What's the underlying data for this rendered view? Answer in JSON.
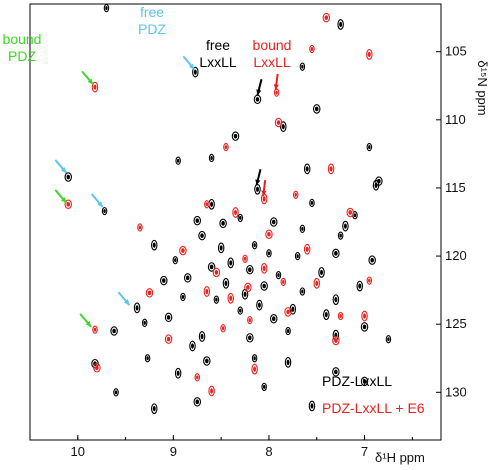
{
  "chart_data": {
    "type": "scatter",
    "title": "",
    "xlabel": "δ¹H ppm",
    "ylabel": "δ¹⁵N ppm",
    "xlim": [
      10.5,
      6.2
    ],
    "ylim": [
      101.5,
      133.5
    ],
    "x_reversed": true,
    "y_reversed": true,
    "x_ticks": [
      10,
      9,
      8,
      7
    ],
    "y_ticks": [
      105,
      110,
      115,
      120,
      125,
      130
    ],
    "legend_position": "bottom-right",
    "colors": {
      "free": "#000000",
      "bound": "#e8231f",
      "free_arrow": "#5bc6ee",
      "bound_arrow": "#3fd62a"
    },
    "series": [
      {
        "name": "PDZ-LxxLL",
        "color": "#000000",
        "points": [
          [
            9.7,
            101.8
          ],
          [
            8.77,
            106.5
          ],
          [
            8.12,
            108.5
          ],
          [
            7.65,
            106.1
          ],
          [
            7.25,
            103.0
          ],
          [
            10.1,
            114.2
          ],
          [
            9.72,
            116.7
          ],
          [
            8.12,
            115.1
          ],
          [
            7.95,
            117.5
          ],
          [
            8.3,
            117.2
          ],
          [
            8.6,
            116.2
          ],
          [
            8.48,
            117.6
          ],
          [
            7.55,
            116.1
          ],
          [
            7.2,
            117.8
          ],
          [
            6.85,
            114.5
          ],
          [
            6.95,
            112.0
          ],
          [
            6.88,
            114.8
          ],
          [
            8.7,
            118.5
          ],
          [
            8.15,
            119.2
          ],
          [
            8.4,
            120.5
          ],
          [
            8.2,
            121.0
          ],
          [
            8.0,
            119.8
          ],
          [
            8.25,
            122.8
          ],
          [
            8.05,
            122.2
          ],
          [
            7.9,
            121.4
          ],
          [
            8.45,
            122.0
          ],
          [
            8.6,
            120.8
          ],
          [
            7.7,
            120.0
          ],
          [
            7.45,
            121.2
          ],
          [
            7.3,
            119.8
          ],
          [
            8.3,
            124.0
          ],
          [
            8.1,
            123.6
          ],
          [
            7.95,
            124.6
          ],
          [
            8.55,
            123.2
          ],
          [
            7.75,
            123.9
          ],
          [
            8.85,
            121.6
          ],
          [
            8.98,
            120.3
          ],
          [
            9.2,
            119.2
          ],
          [
            9.1,
            121.8
          ],
          [
            8.9,
            123.0
          ],
          [
            9.38,
            123.8
          ],
          [
            9.62,
            125.5
          ],
          [
            9.3,
            124.9
          ],
          [
            8.7,
            125.9
          ],
          [
            8.2,
            126.0
          ],
          [
            7.8,
            125.5
          ],
          [
            7.3,
            125.8
          ],
          [
            7.0,
            125.2
          ],
          [
            6.75,
            126.1
          ],
          [
            7.4,
            124.3
          ],
          [
            9.82,
            127.9
          ],
          [
            9.27,
            127.5
          ],
          [
            8.95,
            128.6
          ],
          [
            8.65,
            127.7
          ],
          [
            8.15,
            127.5
          ],
          [
            7.8,
            127.8
          ],
          [
            7.3,
            128.5
          ],
          [
            9.6,
            130.0
          ],
          [
            9.2,
            131.2
          ],
          [
            8.75,
            130.7
          ],
          [
            8.05,
            129.6
          ],
          [
            7.55,
            131.0
          ],
          [
            7.0,
            129.2
          ],
          [
            7.25,
            118.5
          ],
          [
            7.6,
            113.6
          ],
          [
            8.35,
            111.2
          ],
          [
            8.6,
            112.8
          ],
          [
            7.85,
            110.5
          ],
          [
            7.5,
            109.2
          ],
          [
            8.95,
            113.0
          ],
          [
            7.05,
            122.2
          ],
          [
            6.92,
            120.3
          ],
          [
            7.1,
            117.0
          ],
          [
            8.5,
            119.4
          ],
          [
            8.75,
            117.4
          ],
          [
            7.65,
            118.0
          ],
          [
            8.8,
            126.6
          ],
          [
            9.05,
            124.5
          ],
          [
            7.65,
            122.6
          ],
          [
            7.3,
            123.2
          ]
        ]
      },
      {
        "name": "PDZ-LxxLL + E6",
        "color": "#e8231f",
        "points": [
          [
            7.92,
            108.0
          ],
          [
            9.82,
            107.6
          ],
          [
            10.1,
            116.2
          ],
          [
            9.82,
            125.4
          ],
          [
            8.05,
            115.8
          ],
          [
            7.4,
            102.5
          ],
          [
            7.55,
            104.8
          ],
          [
            6.95,
            105.2
          ],
          [
            7.9,
            110.2
          ],
          [
            8.45,
            112.0
          ],
          [
            7.35,
            113.6
          ],
          [
            7.15,
            116.8
          ],
          [
            8.65,
            116.2
          ],
          [
            8.35,
            116.8
          ],
          [
            8.0,
            118.4
          ],
          [
            8.25,
            120.2
          ],
          [
            8.05,
            120.9
          ],
          [
            8.55,
            121.2
          ],
          [
            7.85,
            121.9
          ],
          [
            8.4,
            123.1
          ],
          [
            7.8,
            124.1
          ],
          [
            8.2,
            124.7
          ],
          [
            8.65,
            122.6
          ],
          [
            9.25,
            122.7
          ],
          [
            7.25,
            124.4
          ],
          [
            7.5,
            122.0
          ],
          [
            8.9,
            119.6
          ],
          [
            9.35,
            117.9
          ],
          [
            7.0,
            124.4
          ],
          [
            9.8,
            128.2
          ],
          [
            8.75,
            128.9
          ],
          [
            8.15,
            128.3
          ],
          [
            7.3,
            126.2
          ],
          [
            6.95,
            121.8
          ],
          [
            8.6,
            129.9
          ],
          [
            9.05,
            126.1
          ],
          [
            8.48,
            125.3
          ],
          [
            7.6,
            119.5
          ],
          [
            8.22,
            122.3
          ],
          [
            7.72,
            115.5
          ]
        ]
      }
    ],
    "annotations": [
      {
        "text_lines": [
          "bound",
          "PDZ"
        ],
        "color": "#3fd62a"
      },
      {
        "text_lines": [
          "free",
          "PDZ"
        ],
        "color": "#5bc6ee"
      },
      {
        "text_lines": [
          "free",
          "LxxLL"
        ],
        "color": "#000000"
      },
      {
        "text_lines": [
          "bound",
          "LxxLL"
        ],
        "color": "#e8231f"
      }
    ],
    "arrows": [
      {
        "color": "#3fd62a",
        "target": [
          9.84,
          107.4
        ]
      },
      {
        "color": "#3fd62a",
        "target": [
          10.12,
          116.1
        ]
      },
      {
        "color": "#3fd62a",
        "target": [
          9.86,
          125.2
        ]
      },
      {
        "color": "#5bc6ee",
        "target": [
          8.78,
          106.3
        ]
      },
      {
        "color": "#5bc6ee",
        "target": [
          10.12,
          113.9
        ]
      },
      {
        "color": "#5bc6ee",
        "target": [
          9.74,
          116.4
        ]
      },
      {
        "color": "#5bc6ee",
        "target": [
          9.46,
          123.6
        ]
      },
      {
        "color": "#000000",
        "target": [
          8.12,
          108.2
        ]
      },
      {
        "color": "#000000",
        "target": [
          8.13,
          114.8
        ]
      },
      {
        "color": "#e8231f",
        "target": [
          7.93,
          107.8
        ]
      },
      {
        "color": "#e8231f",
        "target": [
          8.06,
          115.6
        ]
      }
    ],
    "legend": [
      {
        "label": "PDZ-LxxLL",
        "color": "#000000"
      },
      {
        "label": "PDZ-LxxLL + E6",
        "color": "#e8231f"
      }
    ]
  }
}
